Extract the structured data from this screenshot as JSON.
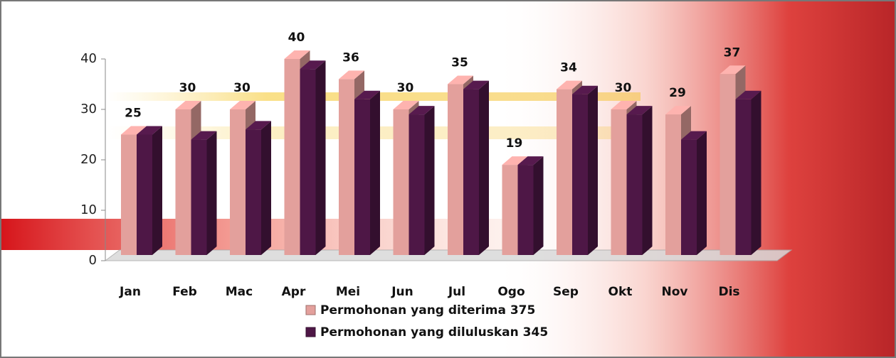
{
  "chart_data": {
    "type": "bar3d",
    "categories": [
      "Jan",
      "Feb",
      "Mac",
      "Apr",
      "Mei",
      "Jun",
      "Jul",
      "Ogo",
      "Sep",
      "Okt",
      "Nov",
      "Dis"
    ],
    "series": [
      {
        "name": "Permohonan yang diterima 375",
        "color": "#e3a09c",
        "values": [
          25,
          30,
          30,
          40,
          36,
          30,
          35,
          19,
          34,
          30,
          29,
          37
        ],
        "show_labels": true
      },
      {
        "name": "Permohonan yang diluluskan 345",
        "color": "#4e1746",
        "values": [
          25,
          24,
          26,
          38,
          32,
          29,
          34,
          19,
          33,
          29,
          24,
          32
        ],
        "show_labels": false
      }
    ],
    "ylim": [
      0,
      40
    ],
    "yticks": [
      0,
      10,
      20,
      30,
      40
    ],
    "legend": "bottom"
  }
}
